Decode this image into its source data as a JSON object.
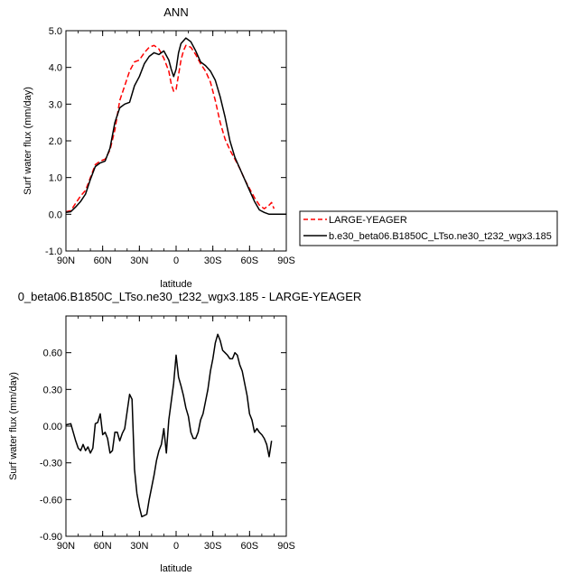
{
  "chart_data": [
    {
      "type": "line",
      "title": "ANN",
      "xlabel": "latitude",
      "ylabel": "Surf water flux (mm/day)",
      "xlim": [
        90,
        -90
      ],
      "ylim": [
        -1.0,
        5.0
      ],
      "xticks": [
        90,
        60,
        30,
        0,
        -30,
        -60,
        -90
      ],
      "xtick_labels": [
        "90N",
        "60N",
        "30N",
        "0",
        "30S",
        "60S",
        "90S"
      ],
      "yticks": [
        -1.0,
        0.0,
        1.0,
        2.0,
        3.0,
        4.0,
        5.0
      ],
      "ytick_labels": [
        "-1.0",
        "0.0",
        "1.0",
        "2.0",
        "3.0",
        "4.0",
        "5.0"
      ],
      "legend_position": "right",
      "series": [
        {
          "name": "LARGE-YEAGER",
          "color": "#ff0000",
          "dash": "dashed",
          "points": [
            [
              90,
              0.07
            ],
            [
              86,
              0.1
            ],
            [
              82,
              0.3
            ],
            [
              78,
              0.5
            ],
            [
              74,
              0.65
            ],
            [
              70,
              1.0
            ],
            [
              66,
              1.35
            ],
            [
              62,
              1.45
            ],
            [
              58,
              1.5
            ],
            [
              54,
              1.75
            ],
            [
              50,
              2.3
            ],
            [
              46,
              3.1
            ],
            [
              42,
              3.5
            ],
            [
              38,
              3.9
            ],
            [
              34,
              4.15
            ],
            [
              30,
              4.2
            ],
            [
              26,
              4.4
            ],
            [
              22,
              4.55
            ],
            [
              18,
              4.6
            ],
            [
              14,
              4.5
            ],
            [
              10,
              4.25
            ],
            [
              6,
              3.9
            ],
            [
              4,
              3.55
            ],
            [
              2,
              3.35
            ],
            [
              0,
              3.4
            ],
            [
              -2,
              3.8
            ],
            [
              -4,
              4.2
            ],
            [
              -6,
              4.45
            ],
            [
              -8,
              4.6
            ],
            [
              -12,
              4.55
            ],
            [
              -16,
              4.35
            ],
            [
              -20,
              4.1
            ],
            [
              -24,
              3.9
            ],
            [
              -28,
              3.6
            ],
            [
              -32,
              3.1
            ],
            [
              -36,
              2.5
            ],
            [
              -40,
              2.05
            ],
            [
              -44,
              1.75
            ],
            [
              -48,
              1.5
            ],
            [
              -52,
              1.25
            ],
            [
              -56,
              0.95
            ],
            [
              -60,
              0.7
            ],
            [
              -64,
              0.45
            ],
            [
              -68,
              0.25
            ],
            [
              -72,
              0.15
            ],
            [
              -76,
              0.25
            ],
            [
              -78,
              0.32
            ],
            [
              -80,
              0.15
            ]
          ]
        },
        {
          "name": "b.e30_beta06.B1850C_LTso.ne30_t232_wgx3.185",
          "color": "#000000",
          "dash": "solid",
          "points": [
            [
              90,
              0.05
            ],
            [
              86,
              0.07
            ],
            [
              82,
              0.2
            ],
            [
              78,
              0.35
            ],
            [
              74,
              0.55
            ],
            [
              70,
              0.95
            ],
            [
              66,
              1.3
            ],
            [
              62,
              1.4
            ],
            [
              58,
              1.45
            ],
            [
              54,
              1.8
            ],
            [
              50,
              2.5
            ],
            [
              46,
              2.9
            ],
            [
              42,
              3.0
            ],
            [
              38,
              3.05
            ],
            [
              34,
              3.5
            ],
            [
              30,
              3.75
            ],
            [
              26,
              4.1
            ],
            [
              22,
              4.3
            ],
            [
              18,
              4.4
            ],
            [
              14,
              4.35
            ],
            [
              10,
              4.45
            ],
            [
              6,
              4.2
            ],
            [
              4,
              3.95
            ],
            [
              2,
              3.75
            ],
            [
              0,
              3.95
            ],
            [
              -2,
              4.4
            ],
            [
              -4,
              4.65
            ],
            [
              -8,
              4.8
            ],
            [
              -12,
              4.7
            ],
            [
              -16,
              4.45
            ],
            [
              -20,
              4.15
            ],
            [
              -24,
              4.05
            ],
            [
              -28,
              3.9
            ],
            [
              -32,
              3.65
            ],
            [
              -36,
              3.2
            ],
            [
              -40,
              2.65
            ],
            [
              -44,
              2.0
            ],
            [
              -48,
              1.55
            ],
            [
              -52,
              1.25
            ],
            [
              -56,
              0.95
            ],
            [
              -60,
              0.65
            ],
            [
              -64,
              0.35
            ],
            [
              -68,
              0.12
            ],
            [
              -72,
              0.05
            ],
            [
              -76,
              0.0
            ],
            [
              -80,
              0.0
            ],
            [
              -90,
              0.0
            ]
          ]
        }
      ]
    },
    {
      "type": "line",
      "title": "0_beta06.B1850C_LTso.ne30_t232_wgx3.185 - LARGE-YEAGER",
      "xlabel": "latitude",
      "ylabel": "Surf water flux (mm/day)",
      "xlim": [
        90,
        -90
      ],
      "ylim": [
        -0.9,
        0.9
      ],
      "xticks": [
        90,
        60,
        30,
        0,
        -30,
        -60,
        -90
      ],
      "xtick_labels": [
        "90N",
        "60N",
        "30N",
        "0",
        "30S",
        "60S",
        "90S"
      ],
      "yticks": [
        -0.9,
        -0.6,
        -0.3,
        0.0,
        0.3,
        0.6
      ],
      "ytick_labels": [
        "-0.90",
        "-0.60",
        "-0.30",
        "0.00",
        "0.30",
        "0.60"
      ],
      "series": [
        {
          "color": "#000000",
          "dash": "solid",
          "points": [
            [
              90,
              0.01
            ],
            [
              86,
              0.02
            ],
            [
              84,
              -0.05
            ],
            [
              82,
              -0.12
            ],
            [
              80,
              -0.18
            ],
            [
              78,
              -0.2
            ],
            [
              76,
              -0.15
            ],
            [
              74,
              -0.2
            ],
            [
              72,
              -0.17
            ],
            [
              70,
              -0.22
            ],
            [
              68,
              -0.18
            ],
            [
              66,
              0.02
            ],
            [
              64,
              0.03
            ],
            [
              62,
              0.1
            ],
            [
              60,
              -0.07
            ],
            [
              58,
              -0.05
            ],
            [
              56,
              -0.1
            ],
            [
              54,
              -0.22
            ],
            [
              52,
              -0.2
            ],
            [
              50,
              -0.05
            ],
            [
              48,
              -0.05
            ],
            [
              46,
              -0.12
            ],
            [
              44,
              -0.06
            ],
            [
              42,
              -0.02
            ],
            [
              40,
              0.12
            ],
            [
              38,
              0.26
            ],
            [
              36,
              0.22
            ],
            [
              34,
              -0.35
            ],
            [
              32,
              -0.55
            ],
            [
              30,
              -0.66
            ],
            [
              28,
              -0.74
            ],
            [
              26,
              -0.73
            ],
            [
              24,
              -0.72
            ],
            [
              22,
              -0.6
            ],
            [
              20,
              -0.5
            ],
            [
              18,
              -0.4
            ],
            [
              16,
              -0.28
            ],
            [
              14,
              -0.2
            ],
            [
              12,
              -0.15
            ],
            [
              10,
              -0.02
            ],
            [
              8,
              -0.22
            ],
            [
              6,
              0.05
            ],
            [
              4,
              0.2
            ],
            [
              2,
              0.35
            ],
            [
              0,
              0.58
            ],
            [
              -2,
              0.4
            ],
            [
              -4,
              0.33
            ],
            [
              -6,
              0.25
            ],
            [
              -8,
              0.15
            ],
            [
              -10,
              0.08
            ],
            [
              -12,
              -0.05
            ],
            [
              -14,
              -0.1
            ],
            [
              -16,
              -0.1
            ],
            [
              -18,
              -0.05
            ],
            [
              -20,
              0.05
            ],
            [
              -22,
              0.1
            ],
            [
              -24,
              0.2
            ],
            [
              -26,
              0.3
            ],
            [
              -28,
              0.45
            ],
            [
              -30,
              0.55
            ],
            [
              -32,
              0.68
            ],
            [
              -34,
              0.75
            ],
            [
              -36,
              0.7
            ],
            [
              -38,
              0.62
            ],
            [
              -40,
              0.6
            ],
            [
              -42,
              0.58
            ],
            [
              -44,
              0.55
            ],
            [
              -46,
              0.55
            ],
            [
              -48,
              0.6
            ],
            [
              -50,
              0.58
            ],
            [
              -52,
              0.5
            ],
            [
              -54,
              0.45
            ],
            [
              -56,
              0.35
            ],
            [
              -58,
              0.25
            ],
            [
              -60,
              0.1
            ],
            [
              -62,
              0.05
            ],
            [
              -64,
              -0.05
            ],
            [
              -66,
              -0.02
            ],
            [
              -68,
              -0.05
            ],
            [
              -70,
              -0.07
            ],
            [
              -72,
              -0.1
            ],
            [
              -74,
              -0.15
            ],
            [
              -76,
              -0.25
            ],
            [
              -78,
              -0.12
            ]
          ]
        }
      ]
    }
  ]
}
